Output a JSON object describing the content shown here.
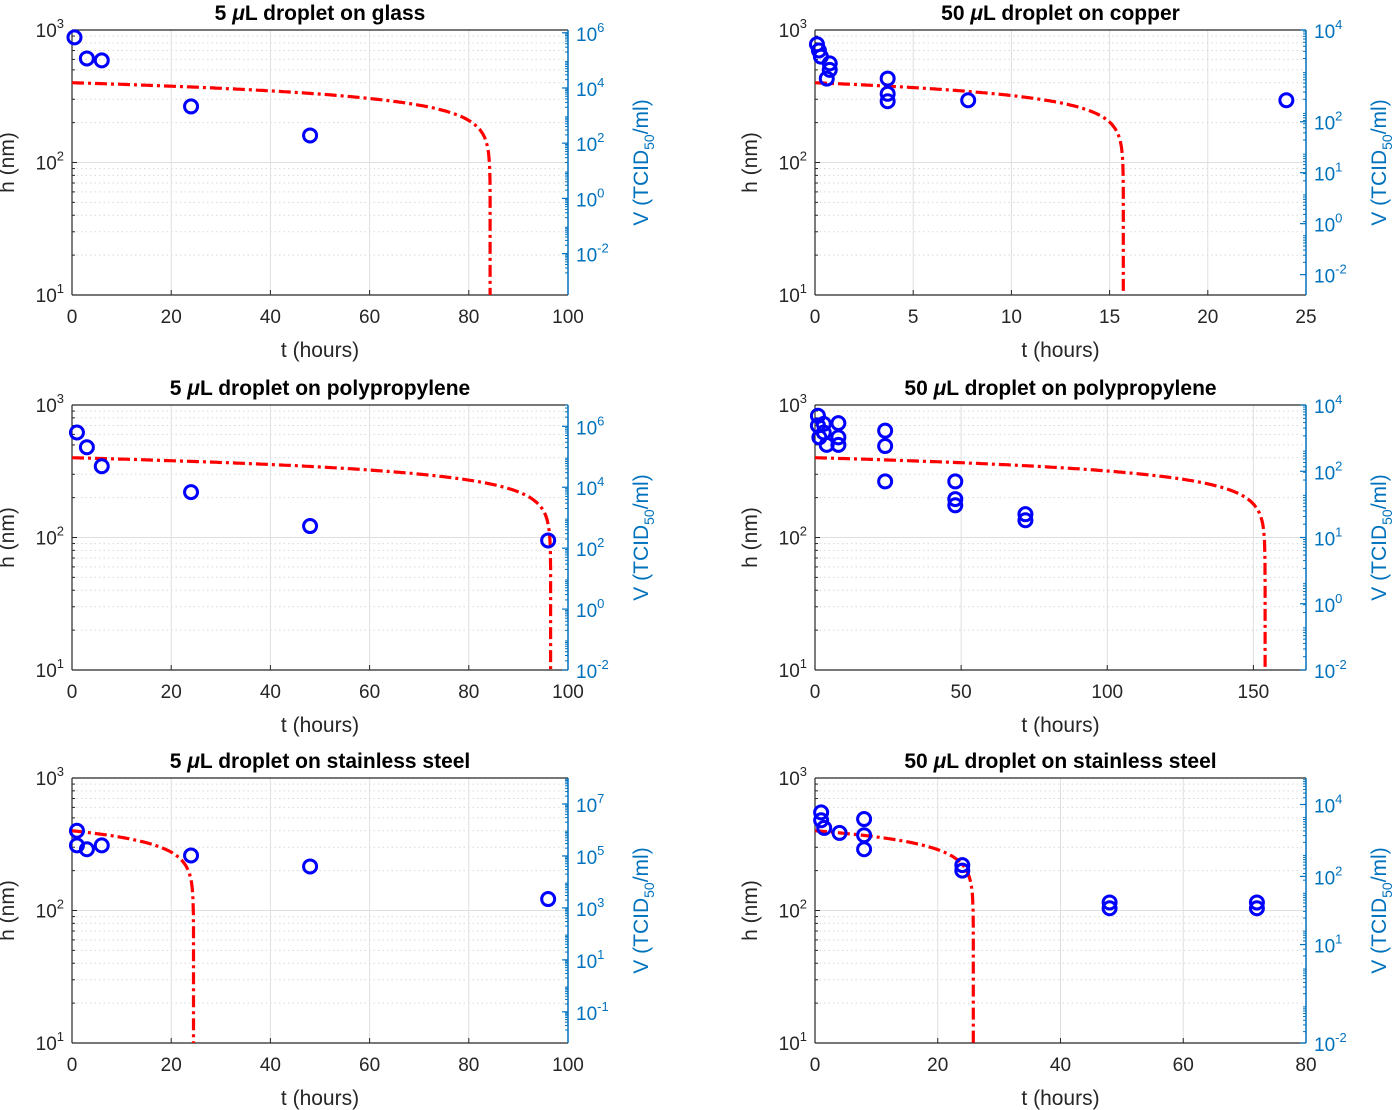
{
  "colors": {
    "model": "#FF0000",
    "data": "#0000FF",
    "right_axis": "#0072BD",
    "grid": "#DFDFDF"
  },
  "chart_data": [
    {
      "type": "line+scatter",
      "title": "5 μL droplet on glass",
      "xlabel": "t (hours)",
      "ylabel": "h (nm)",
      "y2label": "V (TCID50/ml)",
      "xlim": [
        0,
        100
      ],
      "xticks": [
        "0",
        "20",
        "40",
        "60",
        "80",
        "100"
      ],
      "ylim_log": [
        10,
        1000
      ],
      "yticks": [
        {
          "base": "10",
          "exp": "1"
        },
        {
          "base": "10",
          "exp": "2"
        },
        {
          "base": "10",
          "exp": "3"
        }
      ],
      "y2lim_log_exp": [
        -3.5,
        6.1
      ],
      "y2ticks": [
        {
          "base": "10",
          "exp": "-2"
        },
        {
          "base": "10",
          "exp": "0"
        },
        {
          "base": "10",
          "exp": "2"
        },
        {
          "base": "10",
          "exp": "4"
        },
        {
          "base": "10",
          "exp": "6"
        }
      ],
      "model_curve": {
        "h0": 400,
        "t_end": 84.3
      },
      "points": [
        {
          "x": 0.5,
          "y": 880
        },
        {
          "x": 3,
          "y": 610
        },
        {
          "x": 6,
          "y": 590
        },
        {
          "x": 24,
          "y": 265
        },
        {
          "x": 48,
          "y": 160
        }
      ]
    },
    {
      "type": "line+scatter",
      "title": "50 μL droplet on copper",
      "xlabel": "t (hours)",
      "ylabel": "h (nm)",
      "y2label": "V (TCID50/ml)",
      "xlim": [
        0,
        25
      ],
      "xticks": [
        "0",
        "5",
        "10",
        "15",
        "20",
        "25"
      ],
      "ylim_log": [
        10,
        1000
      ],
      "yticks": [
        {
          "base": "10",
          "exp": "1"
        },
        {
          "base": "10",
          "exp": "2"
        },
        {
          "base": "10",
          "exp": "3"
        }
      ],
      "y2lim_log_exp": [
        -2.5,
        4.0
      ],
      "y2ticks": [
        {
          "base": "10",
          "exp": "-2"
        },
        {
          "base": "10",
          "exp": "0"
        },
        {
          "base": "10",
          "exp": "1"
        },
        {
          "base": "10",
          "exp": "2"
        },
        {
          "base": "10",
          "exp": "4"
        }
      ],
      "y2tick_positions": [
        -2,
        -0.75,
        0.5,
        1.75,
        4
      ],
      "model_curve": {
        "h0": 400,
        "t_end": 15.7
      },
      "points": [
        {
          "x": 0.1,
          "y": 780
        },
        {
          "x": 0.2,
          "y": 700
        },
        {
          "x": 0.3,
          "y": 630
        },
        {
          "x": 0.75,
          "y": 560
        },
        {
          "x": 0.75,
          "y": 500
        },
        {
          "x": 0.6,
          "y": 430
        },
        {
          "x": 3.7,
          "y": 430
        },
        {
          "x": 3.7,
          "y": 330
        },
        {
          "x": 3.7,
          "y": 290
        },
        {
          "x": 7.8,
          "y": 295
        },
        {
          "x": 24,
          "y": 295
        }
      ]
    },
    {
      "type": "line+scatter",
      "title": "5 μL droplet on polypropylene",
      "xlabel": "t (hours)",
      "ylabel": "h (nm)",
      "y2label": "V (TCID50/ml)",
      "xlim": [
        0,
        100
      ],
      "xticks": [
        "0",
        "20",
        "40",
        "60",
        "80",
        "100"
      ],
      "ylim_log": [
        10,
        1000
      ],
      "yticks": [
        {
          "base": "10",
          "exp": "1"
        },
        {
          "base": "10",
          "exp": "2"
        },
        {
          "base": "10",
          "exp": "3"
        }
      ],
      "y2lim_log_exp": [
        -2.0,
        6.7
      ],
      "y2ticks": [
        {
          "base": "10",
          "exp": "-2"
        },
        {
          "base": "10",
          "exp": "0"
        },
        {
          "base": "10",
          "exp": "2"
        },
        {
          "base": "10",
          "exp": "4"
        },
        {
          "base": "10",
          "exp": "6"
        }
      ],
      "model_curve": {
        "h0": 400,
        "t_end": 96.5
      },
      "points": [
        {
          "x": 1,
          "y": 620
        },
        {
          "x": 3,
          "y": 480
        },
        {
          "x": 6,
          "y": 345
        },
        {
          "x": 24,
          "y": 220
        },
        {
          "x": 48,
          "y": 122
        },
        {
          "x": 96,
          "y": 95
        }
      ]
    },
    {
      "type": "line+scatter",
      "title": "50 μL droplet on polypropylene",
      "xlabel": "t (hours)",
      "ylabel": "h (nm)",
      "y2label": "V (TCID50/ml)",
      "xlim": [
        0,
        168
      ],
      "xticks": [
        "0",
        "50",
        "100",
        "150"
      ],
      "xtick_positions": [
        0,
        50,
        100,
        150
      ],
      "ylim_log": [
        10,
        1000
      ],
      "yticks": [
        {
          "base": "10",
          "exp": "1"
        },
        {
          "base": "10",
          "exp": "2"
        },
        {
          "base": "10",
          "exp": "3"
        }
      ],
      "y2lim_log_exp": [
        -2.0,
        4.0
      ],
      "y2ticks": [
        {
          "base": "10",
          "exp": "-2"
        },
        {
          "base": "10",
          "exp": "0"
        },
        {
          "base": "10",
          "exp": "1"
        },
        {
          "base": "10",
          "exp": "2"
        },
        {
          "base": "10",
          "exp": "4"
        }
      ],
      "y2tick_positions": [
        -2,
        -0.5,
        1,
        2.5,
        4
      ],
      "model_curve": {
        "h0": 400,
        "t_end": 154
      },
      "points": [
        {
          "x": 1,
          "y": 830
        },
        {
          "x": 1,
          "y": 700
        },
        {
          "x": 1.5,
          "y": 570
        },
        {
          "x": 3,
          "y": 720
        },
        {
          "x": 3,
          "y": 620
        },
        {
          "x": 4,
          "y": 500
        },
        {
          "x": 8,
          "y": 730
        },
        {
          "x": 8,
          "y": 570
        },
        {
          "x": 8,
          "y": 500
        },
        {
          "x": 24,
          "y": 640
        },
        {
          "x": 24,
          "y": 490
        },
        {
          "x": 24,
          "y": 265
        },
        {
          "x": 48,
          "y": 265
        },
        {
          "x": 48,
          "y": 195
        },
        {
          "x": 48,
          "y": 175
        },
        {
          "x": 72,
          "y": 150
        },
        {
          "x": 72,
          "y": 135
        }
      ]
    },
    {
      "type": "line+scatter",
      "title": "5 μL droplet on stainless steel",
      "xlabel": "t (hours)",
      "ylabel": "h (nm)",
      "y2label": "V (TCID50/ml)",
      "xlim": [
        0,
        100
      ],
      "xticks": [
        "0",
        "20",
        "40",
        "60",
        "80",
        "100"
      ],
      "ylim_log": [
        10,
        1000
      ],
      "yticks": [
        {
          "base": "10",
          "exp": "1"
        },
        {
          "base": "10",
          "exp": "2"
        },
        {
          "base": "10",
          "exp": "3"
        }
      ],
      "y2lim_log_exp": [
        -2.2,
        8.0
      ],
      "y2ticks": [
        {
          "base": "10",
          "exp": "-1"
        },
        {
          "base": "10",
          "exp": "1"
        },
        {
          "base": "10",
          "exp": "3"
        },
        {
          "base": "10",
          "exp": "5"
        },
        {
          "base": "10",
          "exp": "7"
        }
      ],
      "model_curve": {
        "h0": 400,
        "t_end": 24.5
      },
      "points": [
        {
          "x": 1,
          "y": 400
        },
        {
          "x": 1,
          "y": 310
        },
        {
          "x": 3,
          "y": 290
        },
        {
          "x": 6,
          "y": 310
        },
        {
          "x": 24,
          "y": 260
        },
        {
          "x": 48,
          "y": 215
        },
        {
          "x": 96,
          "y": 122
        }
      ]
    },
    {
      "type": "line+scatter",
      "title": "50 μL droplet on stainless steel",
      "xlabel": "t (hours)",
      "ylabel": "h (nm)",
      "y2label": "V (TCID50/ml)",
      "xlim": [
        0,
        80
      ],
      "xticks": [
        "0",
        "20",
        "40",
        "60",
        "80"
      ],
      "ylim_log": [
        10,
        1000
      ],
      "yticks": [
        {
          "base": "10",
          "exp": "1"
        },
        {
          "base": "10",
          "exp": "2"
        },
        {
          "base": "10",
          "exp": "3"
        }
      ],
      "y2lim_log_exp": [
        -2.0,
        5.0
      ],
      "y2ticks": [
        {
          "base": "10",
          "exp": "-2"
        },
        {
          "base": "10",
          "exp": "1"
        },
        {
          "base": "10",
          "exp": "2"
        },
        {
          "base": "10",
          "exp": "4"
        }
      ],
      "y2tick_positions": [
        -2,
        0.6,
        2.4,
        4.3
      ],
      "model_curve": {
        "h0": 400,
        "t_end": 25.8
      },
      "points": [
        {
          "x": 1,
          "y": 550
        },
        {
          "x": 1,
          "y": 480
        },
        {
          "x": 1.5,
          "y": 420
        },
        {
          "x": 4,
          "y": 385
        },
        {
          "x": 8,
          "y": 490
        },
        {
          "x": 8,
          "y": 370
        },
        {
          "x": 8,
          "y": 290
        },
        {
          "x": 24,
          "y": 220
        },
        {
          "x": 24,
          "y": 200
        },
        {
          "x": 48,
          "y": 115
        },
        {
          "x": 48,
          "y": 104
        },
        {
          "x": 72,
          "y": 115
        },
        {
          "x": 72,
          "y": 104
        }
      ]
    }
  ]
}
